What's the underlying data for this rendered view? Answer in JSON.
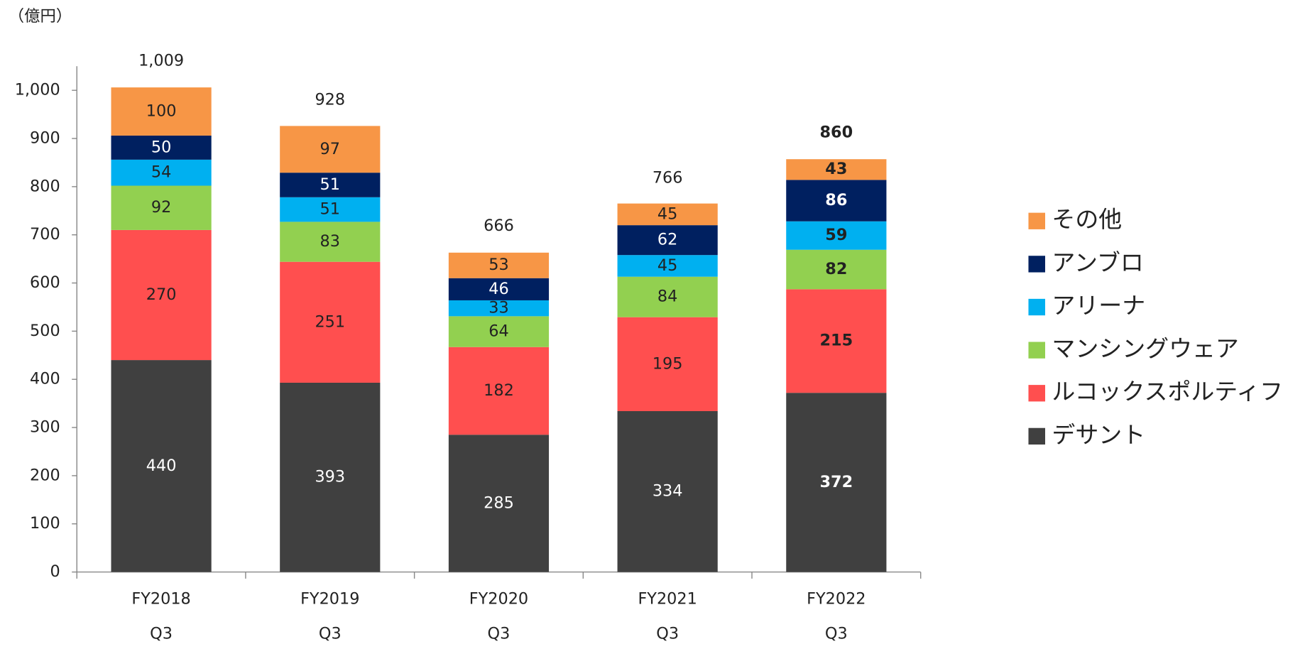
{
  "chart_data": {
    "type": "stacked_bar",
    "y_label": "（億円）",
    "categories": [
      [
        "FY2018",
        "Q3"
      ],
      [
        "FY2019",
        "Q3"
      ],
      [
        "FY2020",
        "Q3"
      ],
      [
        "FY2021",
        "Q3"
      ],
      [
        "FY2022",
        "Q3"
      ]
    ],
    "series": [
      {
        "name": "デサント",
        "color": "#404040",
        "label_color": "#ffffff",
        "values": [
          440,
          393,
          285,
          334,
          372
        ]
      },
      {
        "name": "ルコックスポルティフ",
        "color": "#ff4f4f",
        "label_color": "#222222",
        "values": [
          270,
          251,
          182,
          195,
          215
        ]
      },
      {
        "name": "マンシングウェア",
        "color": "#92d050",
        "label_color": "#222222",
        "values": [
          92,
          83,
          64,
          84,
          82
        ]
      },
      {
        "name": "アリーナ",
        "color": "#00b0f0",
        "label_color": "#222222",
        "values": [
          54,
          51,
          33,
          45,
          59
        ]
      },
      {
        "name": "アンブロ",
        "color": "#002060",
        "label_color": "#ffffff",
        "values": [
          50,
          51,
          46,
          62,
          86
        ]
      },
      {
        "name": "その他",
        "color": "#f79646",
        "label_color": "#222222",
        "values": [
          100,
          97,
          53,
          45,
          43
        ]
      }
    ],
    "totals": [
      1009,
      928,
      666,
      766,
      860
    ],
    "total_labels": [
      "1,009",
      "928",
      "666",
      "766",
      "860"
    ],
    "ylim": [
      0,
      1050
    ],
    "yticks": [
      0,
      100,
      200,
      300,
      400,
      500,
      600,
      700,
      800,
      900,
      {
        "value": 1000,
        "label": "1,000"
      }
    ],
    "legend": "right"
  }
}
